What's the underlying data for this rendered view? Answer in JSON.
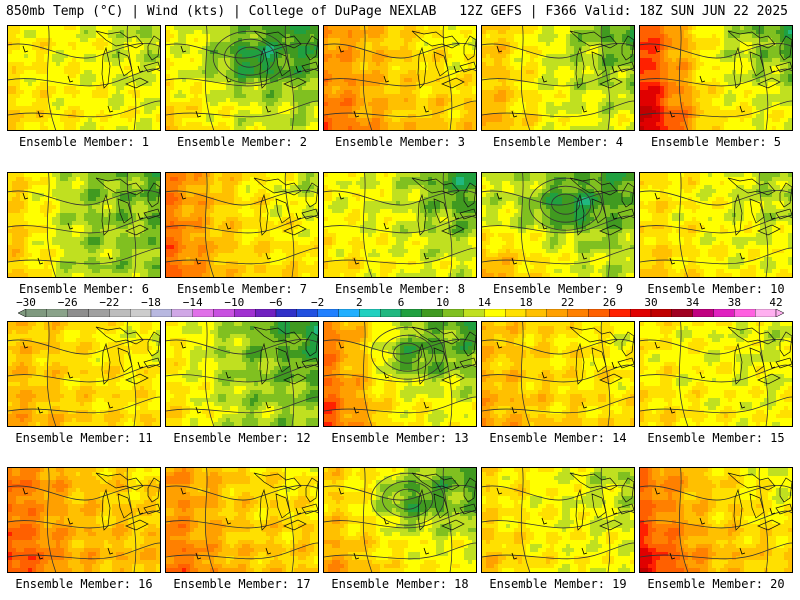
{
  "header": {
    "left": "850mb Temp (°C) | Wind (kts) | College of DuPage NEXLAB",
    "right": "12Z GEFS | F366 Valid: 18Z SUN JUN 22 2025"
  },
  "caption_prefix": "Ensemble Member: ",
  "members": [
    {
      "id": 1,
      "caption": "Ensemble Member: 1",
      "base": 15,
      "warmW": 1,
      "warmSW": 2,
      "coolNE": 3,
      "low": 0
    },
    {
      "id": 2,
      "caption": "Ensemble Member: 2",
      "base": 13,
      "warmW": 2,
      "warmSW": 4,
      "coolNE": 6,
      "low": 1
    },
    {
      "id": 3,
      "caption": "Ensemble Member: 3",
      "base": 18,
      "warmW": 4,
      "warmSW": 3,
      "coolNE": 5,
      "low": 0
    },
    {
      "id": 4,
      "caption": "Ensemble Member: 4",
      "base": 14,
      "warmW": 5,
      "warmSW": 2,
      "coolNE": 6,
      "low": 0
    },
    {
      "id": 5,
      "caption": "Ensemble Member: 5",
      "base": 15,
      "warmW": 12,
      "warmSW": 6,
      "coolNE": 7,
      "low": 0
    },
    {
      "id": 6,
      "caption": "Ensemble Member: 6",
      "base": 12,
      "warmW": 6,
      "warmSW": 1,
      "coolNE": 2,
      "low": 0
    },
    {
      "id": 7,
      "caption": "Ensemble Member: 7",
      "base": 17,
      "warmW": 6,
      "warmSW": 2,
      "coolNE": 5,
      "low": 0
    },
    {
      "id": 8,
      "caption": "Ensemble Member: 8",
      "base": 14,
      "warmW": 1,
      "warmSW": 3,
      "coolNE": 8,
      "low": 0
    },
    {
      "id": 9,
      "caption": "Ensemble Member: 9",
      "base": 13,
      "warmW": 1,
      "warmSW": 8,
      "coolNE": 5,
      "low": 1
    },
    {
      "id": 10,
      "caption": "Ensemble Member: 10",
      "base": 15,
      "warmW": 2,
      "warmSW": 2,
      "coolNE": 4,
      "low": 0
    },
    {
      "id": 11,
      "caption": "Ensemble Member: 11",
      "base": 17,
      "warmW": 2,
      "warmSW": 2,
      "coolNE": 3,
      "low": 0
    },
    {
      "id": 12,
      "caption": "Ensemble Member: 12",
      "base": 12,
      "warmW": 4,
      "warmSW": 2,
      "coolNE": 5,
      "low": 0
    },
    {
      "id": 13,
      "caption": "Ensemble Member: 13",
      "base": 15,
      "warmW": 8,
      "warmSW": 3,
      "coolNE": 7,
      "low": 1
    },
    {
      "id": 14,
      "caption": "Ensemble Member: 14",
      "base": 17,
      "warmW": 2,
      "warmSW": 2,
      "coolNE": 3,
      "low": 0
    },
    {
      "id": 15,
      "caption": "Ensemble Member: 15",
      "base": 15,
      "warmW": 1,
      "warmSW": 2,
      "coolNE": 2,
      "low": 0
    },
    {
      "id": 16,
      "caption": "Ensemble Member: 16",
      "base": 19,
      "warmW": 5,
      "warmSW": 3,
      "coolNE": 3,
      "low": 0
    },
    {
      "id": 17,
      "caption": "Ensemble Member: 17",
      "base": 18,
      "warmW": 4,
      "warmSW": 3,
      "coolNE": 3,
      "low": 0
    },
    {
      "id": 18,
      "caption": "Ensemble Member: 18",
      "base": 15,
      "warmW": 3,
      "warmSW": 4,
      "coolNE": 7,
      "low": 1
    },
    {
      "id": 19,
      "caption": "Ensemble Member: 19",
      "base": 15,
      "warmW": 2,
      "warmSW": 2,
      "coolNE": 3,
      "low": 0
    },
    {
      "id": 20,
      "caption": "Ensemble Member: 20",
      "base": 18,
      "warmW": 6,
      "warmSW": 6,
      "coolNE": 5,
      "low": 0
    }
  ],
  "colorbar": {
    "labels": [
      "−30",
      "−26",
      "−22",
      "−18",
      "−14",
      "−10",
      "−6",
      "−2",
      "2",
      "6",
      "10",
      "14",
      "18",
      "22",
      "26",
      "30",
      "34",
      "38",
      "42"
    ],
    "bins": [
      -30,
      -28,
      -26,
      -24,
      -22,
      -20,
      -18,
      -16,
      -14,
      -12,
      -10,
      -8,
      -6,
      -4,
      -2,
      0,
      2,
      4,
      6,
      8,
      10,
      12,
      14,
      16,
      18,
      20,
      22,
      24,
      26,
      28,
      30,
      32,
      34,
      36,
      38,
      40,
      42
    ],
    "colors": [
      "#7f9a7f",
      "#8aa38a",
      "#8e8e8e",
      "#a0a0a0",
      "#bdbdbd",
      "#cccccc",
      "#b8b8e0",
      "#d0a8e6",
      "#e070e8",
      "#c850e0",
      "#a030d0",
      "#7020c0",
      "#3030c8",
      "#2050e0",
      "#2080ff",
      "#20b0ff",
      "#20d0c0",
      "#20b880",
      "#20a040",
      "#409a20",
      "#80c020",
      "#c0e020",
      "#ffff00",
      "#ffe000",
      "#ffc000",
      "#ffa000",
      "#ff8000",
      "#ff6000",
      "#ff2000",
      "#e00000",
      "#c00000",
      "#a00020",
      "#c00080",
      "#e020c0",
      "#ff60e0",
      "#ffb0f0"
    ]
  }
}
